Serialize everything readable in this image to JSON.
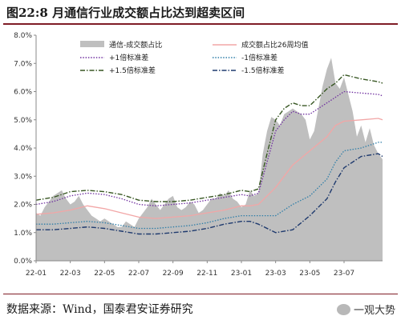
{
  "title": "图22:8 月通信行业成交额占比达到超卖区间",
  "source": "数据来源：Wind，国泰君安证券研究",
  "watermark": "一观大势",
  "colors": {
    "area": "#bfbfbf",
    "ma": "#f2a6a6",
    "plus1": "#7030a0",
    "minus1": "#2f7ea8",
    "plus15": "#385723",
    "minus15": "#1f3a6e",
    "brand": "#7f1c26"
  },
  "chart_data": {
    "type": "area",
    "ylim": [
      0,
      8
    ],
    "y_ticks": [
      "0.0%",
      "1.0%",
      "2.0%",
      "3.0%",
      "4.0%",
      "5.0%",
      "6.0%",
      "7.0%",
      "8.0%"
    ],
    "x_ticks": [
      "22-01",
      "22-03",
      "22-05",
      "22-07",
      "22-09",
      "22-11",
      "23-01",
      "23-03",
      "23-05",
      "23-07"
    ],
    "x_tick_pos": [
      0,
      2,
      4,
      6,
      8,
      10,
      12,
      14,
      16,
      18
    ],
    "series": [
      {
        "name": "通信-成交额占比",
        "kind": "area",
        "x": [
          0,
          0.25,
          0.5,
          0.75,
          1,
          1.25,
          1.5,
          1.75,
          2,
          2.25,
          2.5,
          2.75,
          3,
          3.25,
          3.5,
          3.75,
          4,
          4.25,
          4.5,
          4.75,
          5,
          5.25,
          5.5,
          5.75,
          6,
          6.25,
          6.5,
          6.75,
          7,
          7.25,
          7.5,
          7.75,
          8,
          8.25,
          8.5,
          8.75,
          9,
          9.25,
          9.5,
          9.75,
          10,
          10.25,
          10.5,
          10.75,
          11,
          11.25,
          11.5,
          11.75,
          12,
          12.25,
          12.5,
          12.75,
          13,
          13.25,
          13.5,
          13.75,
          14,
          14.25,
          14.5,
          14.75,
          15,
          15.25,
          15.5,
          15.75,
          16,
          16.25,
          16.5,
          16.75,
          17,
          17.25,
          17.5,
          17.75,
          18,
          18.25,
          18.5,
          18.75,
          19,
          19.25,
          19.5,
          19.75,
          20,
          20.25
        ],
        "values": [
          1.7,
          1.6,
          1.9,
          2.1,
          2.3,
          2.4,
          2.5,
          2.2,
          2.0,
          2.1,
          2.3,
          2.0,
          1.8,
          1.6,
          1.5,
          1.4,
          1.5,
          1.4,
          1.3,
          1.2,
          1.2,
          1.4,
          1.3,
          1.2,
          1.5,
          1.7,
          1.9,
          2.2,
          2.0,
          1.8,
          2.0,
          2.2,
          2.3,
          1.9,
          1.8,
          1.9,
          2.1,
          2.0,
          1.7,
          1.8,
          2.0,
          2.2,
          2.2,
          2.4,
          2.3,
          2.5,
          2.2,
          2.1,
          1.9,
          2.0,
          2.5,
          2.3,
          2.4,
          3.8,
          4.6,
          5.1,
          5.0,
          4.8,
          5.2,
          5.3,
          5.4,
          5.3,
          5.2,
          5.0,
          4.3,
          4.6,
          5.4,
          6.2,
          6.8,
          7.2,
          6.3,
          6.1,
          6.5,
          5.9,
          5.3,
          4.4,
          4.8,
          4.2,
          4.7,
          4.1,
          3.8,
          3.6
        ]
      },
      {
        "name": "成交额占比26周均值",
        "kind": "line",
        "x": [
          0,
          1,
          2,
          3,
          4,
          5,
          6,
          7,
          8,
          9,
          10,
          11,
          12,
          12.5,
          13,
          14,
          15,
          16,
          17,
          17.5,
          18,
          19,
          20,
          20.25
        ],
        "values": [
          1.65,
          1.7,
          1.8,
          1.95,
          1.85,
          1.7,
          1.55,
          1.5,
          1.55,
          1.6,
          1.7,
          1.8,
          1.95,
          1.95,
          2.0,
          2.6,
          3.4,
          3.9,
          4.4,
          4.8,
          4.95,
          5.0,
          5.05,
          5.0
        ]
      },
      {
        "name": "+1倍标准差",
        "kind": "line",
        "x": [
          0,
          1,
          2,
          3,
          4,
          5,
          6,
          7,
          8,
          9,
          10,
          11,
          12,
          12.5,
          13,
          13.5,
          14,
          14.5,
          15,
          15.5,
          16,
          16.5,
          17,
          17.5,
          18,
          19,
          20,
          20.25
        ],
        "values": [
          2.0,
          2.1,
          2.3,
          2.4,
          2.35,
          2.2,
          2.0,
          1.95,
          2.0,
          2.05,
          2.15,
          2.25,
          2.35,
          2.3,
          2.4,
          3.5,
          4.6,
          5.0,
          5.3,
          5.2,
          5.2,
          5.4,
          5.6,
          5.8,
          6.0,
          5.95,
          5.9,
          5.85
        ]
      },
      {
        "name": "-1倍标准差",
        "kind": "line",
        "x": [
          0,
          1,
          2,
          3,
          4,
          5,
          6,
          7,
          8,
          9,
          10,
          11,
          12,
          12.5,
          13,
          14,
          15,
          16,
          17,
          17.5,
          18,
          19,
          20,
          20.25
        ],
        "values": [
          1.3,
          1.3,
          1.35,
          1.4,
          1.35,
          1.25,
          1.15,
          1.15,
          1.2,
          1.25,
          1.35,
          1.5,
          1.6,
          1.6,
          1.6,
          1.6,
          2.0,
          2.3,
          2.9,
          3.5,
          3.9,
          4.0,
          4.2,
          4.2
        ]
      },
      {
        "name": "+1.5倍标准差",
        "kind": "line",
        "x": [
          0,
          1,
          2,
          3,
          4,
          5,
          6,
          7,
          8,
          9,
          10,
          11,
          12,
          12.5,
          13,
          13.5,
          14,
          14.5,
          15,
          15.5,
          16,
          16.5,
          17,
          17.5,
          18,
          19,
          20,
          20.25
        ],
        "values": [
          2.15,
          2.25,
          2.45,
          2.5,
          2.45,
          2.35,
          2.15,
          2.1,
          2.1,
          2.15,
          2.25,
          2.35,
          2.5,
          2.45,
          2.55,
          3.8,
          5.0,
          5.4,
          5.6,
          5.5,
          5.5,
          5.8,
          6.1,
          6.3,
          6.6,
          6.45,
          6.35,
          6.3
        ]
      },
      {
        "name": "-1.5倍标准差",
        "kind": "line",
        "x": [
          0,
          1,
          2,
          3,
          4,
          5,
          6,
          7,
          8,
          9,
          10,
          11,
          12,
          12.5,
          13,
          14,
          15,
          16,
          17,
          17.5,
          18,
          19,
          20,
          20.25
        ],
        "values": [
          1.1,
          1.1,
          1.15,
          1.2,
          1.15,
          1.05,
          0.95,
          0.95,
          1.0,
          1.05,
          1.15,
          1.3,
          1.4,
          1.4,
          1.3,
          1.0,
          1.1,
          1.6,
          2.2,
          2.8,
          3.3,
          3.7,
          3.8,
          3.7
        ]
      }
    ]
  }
}
